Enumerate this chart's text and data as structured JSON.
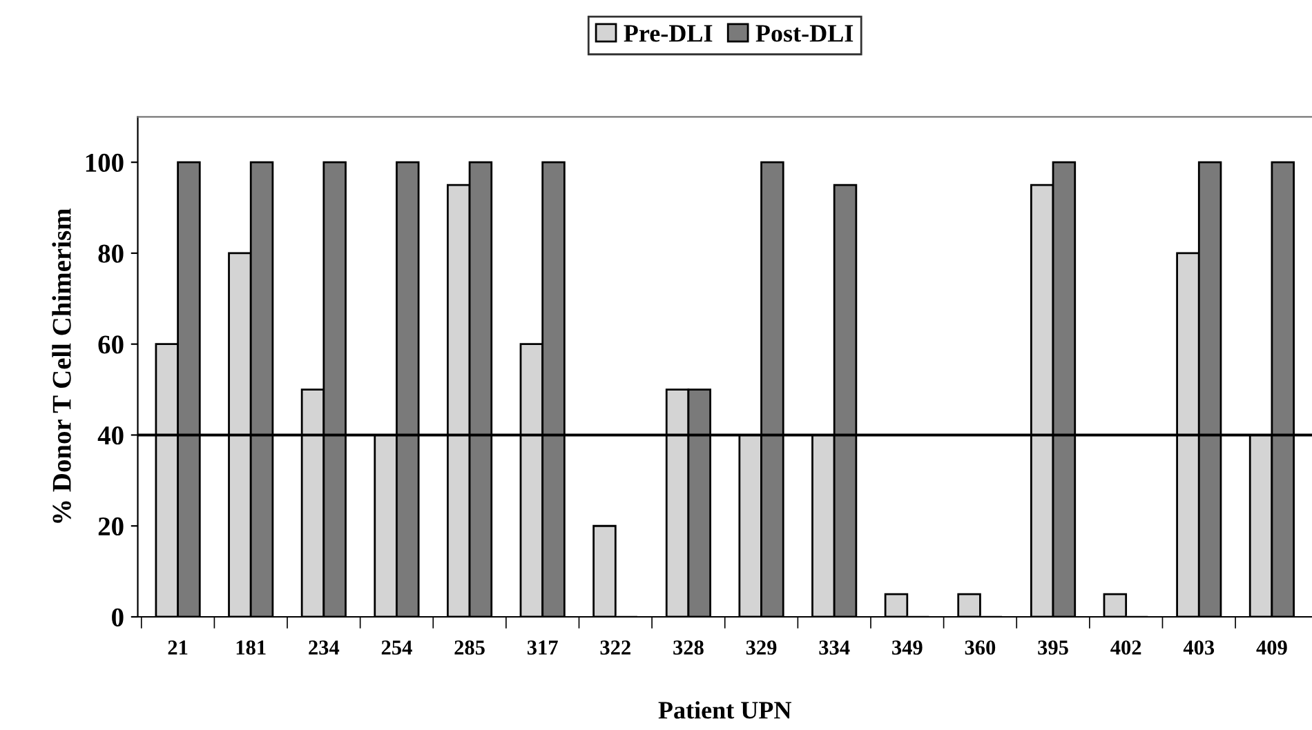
{
  "chart_data": {
    "type": "bar",
    "xlabel": "Patient UPN",
    "ylabel": "% Donor T Cell Chimerism",
    "categories": [
      "21",
      "181",
      "234",
      "254",
      "285",
      "317",
      "322",
      "328",
      "329",
      "334",
      "349",
      "360",
      "395",
      "402",
      "403",
      "409"
    ],
    "series": [
      {
        "name": "Pre-DLI",
        "color": "#d4d4d4",
        "values": [
          60,
          80,
          50,
          40,
          95,
          60,
          20,
          50,
          40,
          40,
          5,
          5,
          95,
          5,
          80,
          40
        ]
      },
      {
        "name": "Post-DLI",
        "color": "#7a7a7a",
        "values": [
          100,
          100,
          100,
          100,
          100,
          100,
          0,
          50,
          100,
          95,
          0,
          0,
          100,
          0,
          100,
          100
        ]
      }
    ],
    "ylim": [
      0,
      110
    ],
    "yticks": [
      0,
      20,
      40,
      60,
      80,
      100
    ],
    "ref_lines": [
      {
        "axis": "y",
        "value": 40,
        "color": "#000000"
      }
    ],
    "grid": false,
    "legend": "top"
  }
}
